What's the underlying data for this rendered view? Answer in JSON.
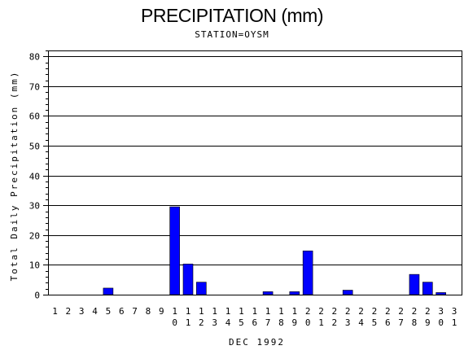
{
  "header": {
    "title": "PRECIPITATION (mm)",
    "subtitle": "STATION=OYSM"
  },
  "chart_data": {
    "type": "bar",
    "title": "PRECIPITATION (mm)",
    "subtitle": "STATION=OYSM",
    "xlabel": "DEC 1992",
    "ylabel": "Total Daily Precipitation (mm)",
    "ylim": [
      0,
      82
    ],
    "yticks": [
      0,
      10,
      20,
      30,
      40,
      50,
      60,
      70,
      80
    ],
    "grid": true,
    "bar_color": "#0000ff",
    "categories": [
      "1",
      "2",
      "3",
      "4",
      "5",
      "6",
      "7",
      "8",
      "9",
      "10",
      "11",
      "12",
      "13",
      "14",
      "15",
      "16",
      "17",
      "18",
      "19",
      "20",
      "21",
      "22",
      "23",
      "24",
      "25",
      "26",
      "27",
      "28",
      "29",
      "30",
      "31"
    ],
    "values": [
      0,
      0,
      0,
      0,
      2.2,
      0,
      0,
      0,
      0,
      29.5,
      10.3,
      4.2,
      0,
      0,
      0,
      0,
      1.0,
      0,
      1.0,
      14.7,
      0,
      0,
      1.5,
      0,
      0,
      0,
      0,
      6.8,
      4.2,
      0.7,
      0
    ]
  }
}
